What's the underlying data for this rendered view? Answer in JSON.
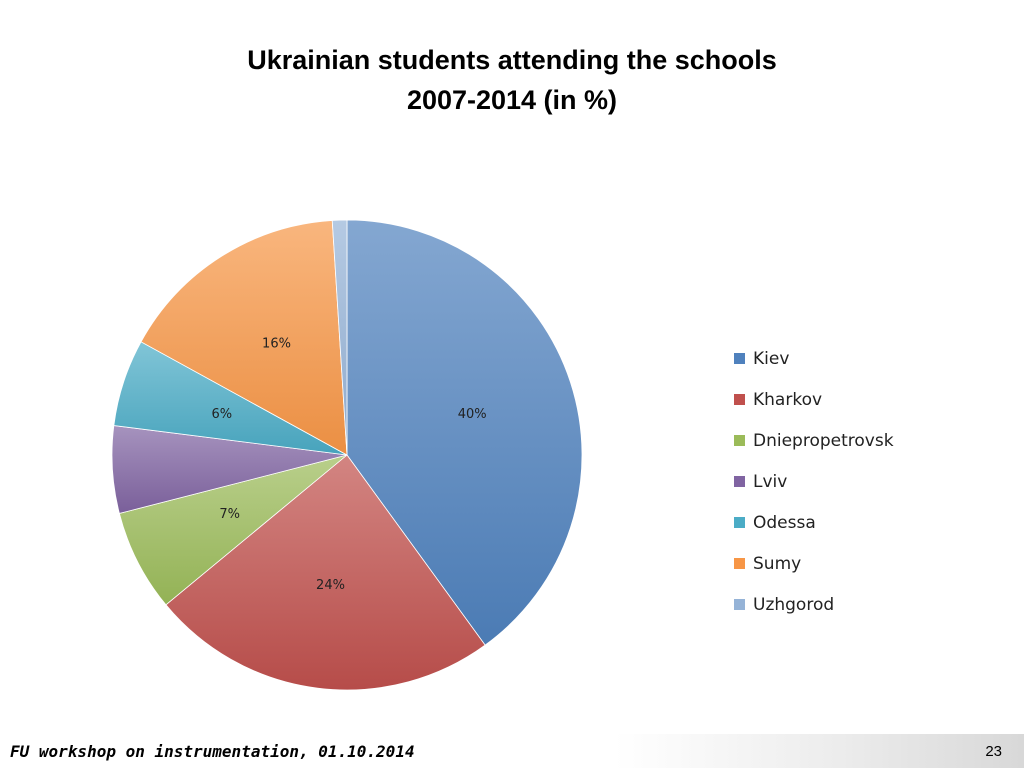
{
  "slide": {
    "footer_text": "FU workshop on instrumentation, 01.10.2014",
    "page_number": "23"
  },
  "chart_data": {
    "type": "pie",
    "title_lines": [
      "Ukrainian students attending the schools",
      "2007-2014 (in %)"
    ],
    "categories": [
      "Kiev",
      "Kharkov",
      "Dniepropetrovsk",
      "Lviv",
      "Odessa",
      "Sumy",
      "Uzhgorod"
    ],
    "values": [
      40,
      24,
      7,
      6,
      6,
      16,
      1
    ],
    "data_labels": [
      "40%",
      "24%",
      "7%",
      "",
      "6%",
      "16%",
      ""
    ],
    "colors": [
      "#4f81bd",
      "#c0504d",
      "#9bbb59",
      "#8064a2",
      "#4bacc6",
      "#f79646",
      "#95b3d7"
    ],
    "start_angle_deg": 0,
    "direction": "clockwise",
    "legend_position": "right"
  }
}
